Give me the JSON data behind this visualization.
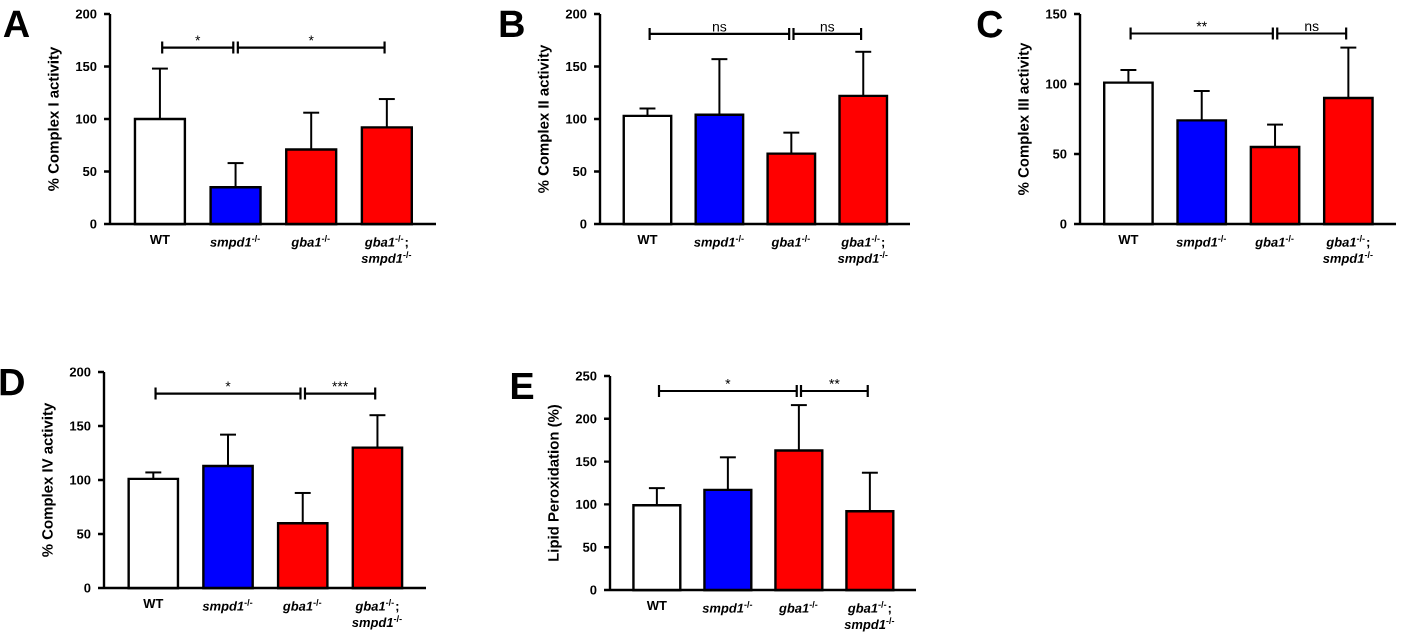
{
  "chart_data": [
    {
      "type": "bar",
      "title": "A",
      "ylabel": "% Complex I activity",
      "categories": [
        "WT",
        "*smpd1*$^{-/-}$",
        "*gba1*$^{-/-}$",
        "*gba1*$^{-/-}$; *smpd1*$^{-/-}$"
      ],
      "values": [
        100,
        35,
        71,
        92
      ],
      "errors": [
        [
          100,
          148
        ],
        [
          35,
          58
        ],
        [
          71,
          106
        ],
        [
          92,
          119
        ]
      ],
      "colors": [
        "#ffffff",
        "#0000ff",
        "#ff0000",
        "#ff0000"
      ],
      "ylim": [
        0,
        200
      ],
      "yticks": [
        0,
        50,
        100,
        150,
        200
      ],
      "annotations": [
        "*",
        "*"
      ]
    },
    {
      "type": "bar",
      "title": "B",
      "ylabel": "% Complex II activity",
      "categories": [
        "WT",
        "*smpd1*$^{-/-}$",
        "*gba1*$^{-/-}$",
        "*gba1*$^{-/-}$; *smpd1*$^{-/-}$"
      ],
      "values": [
        103,
        104,
        67,
        122
      ],
      "errors": [
        [
          103,
          110
        ],
        [
          104,
          157
        ],
        [
          67,
          87
        ],
        [
          122,
          164
        ]
      ],
      "colors": [
        "#ffffff",
        "#0000ff",
        "#ff0000",
        "#ff0000"
      ],
      "ylim": [
        0,
        200
      ],
      "yticks": [
        0,
        50,
        100,
        150,
        200
      ],
      "annotations": [
        "ns",
        "ns"
      ]
    },
    {
      "type": "bar",
      "title": "C",
      "ylabel": "% Complex III activity",
      "categories": [
        "WT",
        "*smpd1*$^{-/-}$",
        "*gba1*$^{-/-}$",
        "*gba1*$^{-/-}$; *smpd1*$^{-/-}$"
      ],
      "values": [
        101,
        74,
        55,
        90
      ],
      "errors": [
        [
          101,
          110
        ],
        [
          74,
          95
        ],
        [
          55,
          71
        ],
        [
          90,
          126
        ]
      ],
      "colors": [
        "#ffffff",
        "#0000ff",
        "#ff0000",
        "#ff0000"
      ],
      "ylim": [
        0,
        150
      ],
      "yticks": [
        0,
        50,
        100,
        150
      ],
      "annotations": [
        "**",
        "ns"
      ]
    },
    {
      "type": "bar",
      "title": "D",
      "ylabel": "% Complex IV activity",
      "categories": [
        "WT",
        "*smpd1*$^{-/-}$",
        "*gba1*$^{-/-}$",
        "*gba1*$^{-/-}$; *smpd1*$^{-/-}$"
      ],
      "values": [
        101,
        113,
        60,
        130
      ],
      "errors": [
        [
          101,
          107
        ],
        [
          113,
          142
        ],
        [
          60,
          88
        ],
        [
          130,
          160
        ]
      ],
      "colors": [
        "#ffffff",
        "#0000ff",
        "#ff0000",
        "#ff0000"
      ],
      "ylim": [
        0,
        200
      ],
      "yticks": [
        0,
        50,
        100,
        150,
        200
      ],
      "annotations": [
        "*",
        "***"
      ]
    },
    {
      "type": "bar",
      "title": "E",
      "ylabel": "Lipid Peroxidation (%)",
      "categories": [
        "WT",
        "*smpd1*$^{-/-}$",
        "*gba1*$^{-/-}$",
        "*gba1*$^{-/-}$; *smpd1*$^{-/-}$"
      ],
      "values": [
        99,
        117,
        163,
        92
      ],
      "errors": [
        [
          99,
          119
        ],
        [
          117,
          155
        ],
        [
          163,
          216
        ],
        [
          92,
          137
        ]
      ],
      "colors": [
        "#ffffff",
        "#0000ff",
        "#ff0000",
        "#ff0000"
      ],
      "ylim": [
        0,
        250
      ],
      "yticks": [
        0,
        50,
        100,
        150,
        200,
        250
      ],
      "annotations": [
        "*",
        "**"
      ]
    }
  ]
}
